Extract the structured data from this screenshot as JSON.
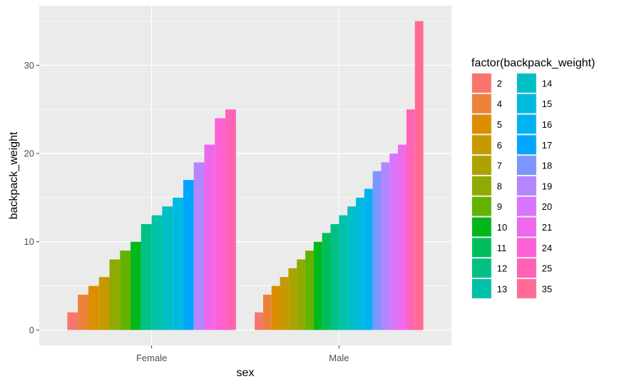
{
  "chart_data": {
    "type": "bar",
    "title": "",
    "xlabel": "sex",
    "ylabel": "backpack_weight",
    "categories": [
      "Female",
      "Male"
    ],
    "ylim": [
      -1.75,
      36.75
    ],
    "yticks": [
      0,
      10,
      20,
      30
    ],
    "grid": true,
    "legend": {
      "title": "factor(backpack_weight)",
      "placement": "right",
      "columns": 2,
      "entries": [
        {
          "label": "2",
          "color": "#F8766D"
        },
        {
          "label": "4",
          "color": "#EC8239"
        },
        {
          "label": "5",
          "color": "#DB8E00"
        },
        {
          "label": "6",
          "color": "#C69900"
        },
        {
          "label": "7",
          "color": "#AEA200"
        },
        {
          "label": "8",
          "color": "#8FAA00"
        },
        {
          "label": "9",
          "color": "#64B200"
        },
        {
          "label": "10",
          "color": "#00B81B"
        },
        {
          "label": "11",
          "color": "#00BD5C"
        },
        {
          "label": "12",
          "color": "#00C085"
        },
        {
          "label": "13",
          "color": "#00C1A7"
        },
        {
          "label": "14",
          "color": "#00BFC4"
        },
        {
          "label": "15",
          "color": "#00BADE"
        },
        {
          "label": "16",
          "color": "#00B2F3"
        },
        {
          "label": "17",
          "color": "#00A6FF"
        },
        {
          "label": "18",
          "color": "#7C96FF"
        },
        {
          "label": "19",
          "color": "#B385FF"
        },
        {
          "label": "20",
          "color": "#D874FD"
        },
        {
          "label": "21",
          "color": "#EF67EB"
        },
        {
          "label": "24",
          "color": "#FD61D3"
        },
        {
          "label": "25",
          "color": "#FF63B6"
        },
        {
          "label": "35",
          "color": "#FF6B94"
        }
      ]
    },
    "series_by_category": {
      "Female": [
        2,
        4,
        5,
        6,
        8,
        9,
        10,
        12,
        13,
        14,
        15,
        17,
        19,
        21,
        24,
        25
      ],
      "Male": [
        2,
        4,
        5,
        6,
        7,
        8,
        9,
        10,
        11,
        12,
        13,
        14,
        15,
        16,
        18,
        19,
        20,
        21,
        25,
        35
      ]
    }
  }
}
